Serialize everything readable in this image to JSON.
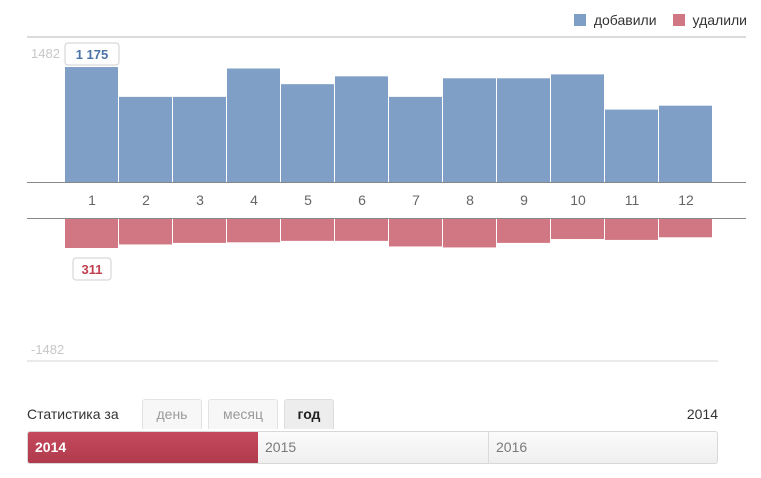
{
  "legend": {
    "added_label": "добавили",
    "removed_label": "удалили"
  },
  "colors": {
    "added": "#7f9fc6",
    "removed": "#d17783",
    "active_year": "#b8404f",
    "axis": "#888888"
  },
  "chart_data": {
    "type": "bar",
    "categories": [
      "1",
      "2",
      "3",
      "4",
      "5",
      "6",
      "7",
      "8",
      "9",
      "10",
      "11",
      "12"
    ],
    "series": [
      {
        "name": "добавили",
        "values": [
          1175,
          870,
          870,
          1160,
          1000,
          1080,
          870,
          1060,
          1060,
          1100,
          740,
          780
        ]
      },
      {
        "name": "удалили",
        "values": [
          311,
          274,
          258,
          252,
          237,
          237,
          295,
          305,
          258,
          218,
          227,
          200
        ]
      }
    ],
    "ylim_top": [
      0,
      1482
    ],
    "ylim_bottom": [
      -1482,
      0
    ],
    "tick_top": "1482",
    "tick_bottom": "-1482",
    "annotations": {
      "added_max": "1 175",
      "removed_max": "311"
    },
    "legend_position": "top-right"
  },
  "controls": {
    "label": "Статистика за",
    "periods": [
      "день",
      "месяц",
      "год"
    ],
    "active_period": "год",
    "selected_year": "2014"
  },
  "years": {
    "items": [
      "2014",
      "2015",
      "2016"
    ],
    "active": "2014"
  }
}
